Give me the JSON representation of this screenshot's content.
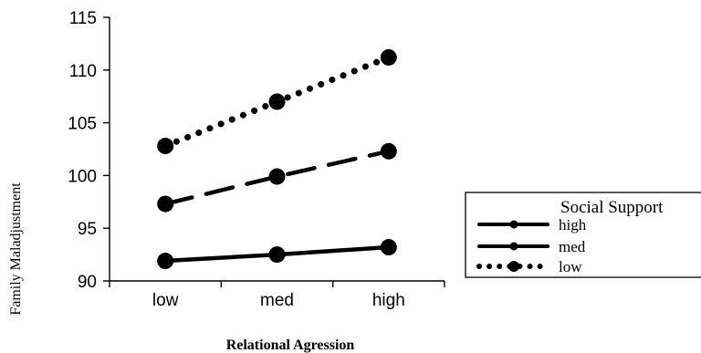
{
  "chart_data": {
    "type": "line",
    "xlabel": "Relational Agression",
    "ylabel": "Family Maladjustment",
    "categories": [
      "low",
      "med",
      "high"
    ],
    "ylim": [
      90,
      115
    ],
    "yticks": [
      90,
      95,
      100,
      105,
      110,
      115
    ],
    "grid": false,
    "legend": {
      "title": "Social Support",
      "placement": "right"
    },
    "series": [
      {
        "name": "high",
        "values": [
          91.9,
          92.5,
          93.2
        ],
        "line_style": "solid"
      },
      {
        "name": "med",
        "values": [
          97.3,
          99.9,
          102.3
        ],
        "line_style": "dashed"
      },
      {
        "name": "low",
        "values": [
          102.8,
          107.0,
          111.2
        ],
        "line_style": "dotted"
      }
    ]
  }
}
